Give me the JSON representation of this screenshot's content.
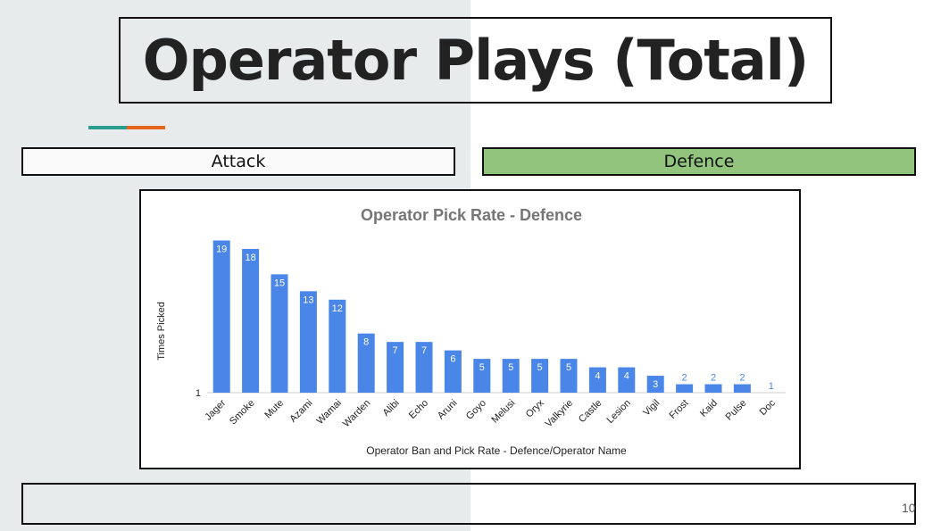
{
  "slide": {
    "title": "Operator Plays (Total)",
    "tab_attack": "Attack",
    "tab_defence": "Defence",
    "page_number": "10"
  },
  "colors": {
    "bar": "#4a86e8",
    "defence_tab": "#93c47d",
    "accent_teal": "#2a9d8f",
    "accent_orange": "#e8651a"
  },
  "chart_data": {
    "type": "bar",
    "title": "Operator Pick Rate - Defence",
    "xlabel": "Operator Ban and Pick Rate - Defence/Operator Name",
    "ylabel": "Times Picked",
    "y_tick_labels": [
      "1"
    ],
    "ylim": [
      1,
      20
    ],
    "grid": false,
    "categories": [
      "Jager",
      "Smoke",
      "Mute",
      "Azami",
      "Wamai",
      "Warden",
      "Alibi",
      "Echo",
      "Aruni",
      "Goyo",
      "Melusi",
      "Oryx",
      "Valkyrie",
      "Castle",
      "Lesion",
      "Vigil",
      "Frost",
      "Kaid",
      "Pulse",
      "Doc"
    ],
    "values": [
      19,
      18,
      15,
      13,
      12,
      8,
      7,
      7,
      6,
      5,
      5,
      5,
      5,
      4,
      4,
      3,
      2,
      2,
      2,
      1
    ]
  }
}
